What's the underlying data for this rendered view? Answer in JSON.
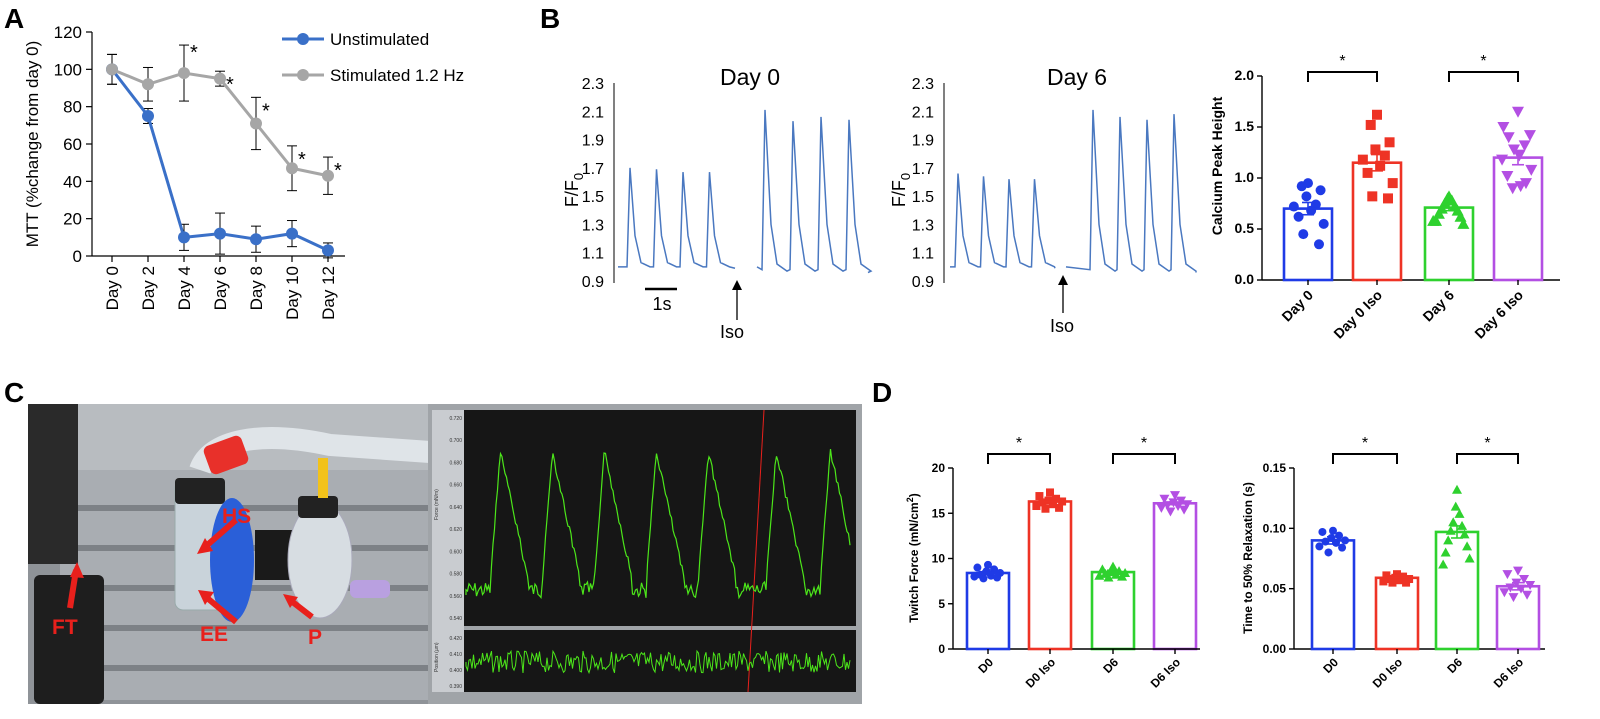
{
  "panels": {
    "a": "A",
    "b": "B",
    "c": "C",
    "d": "D"
  },
  "colors": {
    "blue": "#3A70C8",
    "gray": "#A6A6A6",
    "trace": "#4A78C0",
    "p_blue": "#1F3BE6",
    "p_red": "#EE3325",
    "p_green": "#2ED12E",
    "p_purple": "#B34FE3",
    "photo_green": "#4CE61A",
    "label_red": "#E8201C"
  },
  "chart_data": [
    {
      "id": "A",
      "type": "line",
      "xlabel": "",
      "ylabel": "MTT (%change from day 0)",
      "categories": [
        "Day 0",
        "Day 2",
        "Day 4",
        "Day 6",
        "Day 8",
        "Day 10",
        "Day 12"
      ],
      "ylim": [
        0,
        120
      ],
      "yticks": [
        "0",
        "20",
        "40",
        "60",
        "80",
        "100",
        "120"
      ],
      "series": [
        {
          "name": "Unstimulated",
          "values": [
            100,
            75,
            10,
            12,
            9,
            12,
            3
          ],
          "err": [
            8,
            4,
            7,
            11,
            7,
            7,
            4
          ],
          "sig": []
        },
        {
          "name": "Stimulated 1.2 Hz",
          "values": [
            100,
            92,
            98,
            95,
            71,
            47,
            43
          ],
          "err": [
            8,
            9,
            15,
            4,
            14,
            12,
            10
          ],
          "sig": [
            2,
            3,
            4,
            5,
            6
          ]
        }
      ],
      "sig_label": "*"
    },
    {
      "id": "B-traces",
      "type": "line",
      "ylabel_main": "F/F",
      "ylabel_sub": "0",
      "ylim": [
        0.9,
        2.3
      ],
      "yticks": [
        "0.9",
        "1.1",
        "1.3",
        "1.5",
        "1.7",
        "1.9",
        "2.1",
        "2.3"
      ],
      "traces": [
        {
          "title": "Day 0",
          "pre_peaks": [
            1.7,
            1.69,
            1.67,
            1.67
          ],
          "post_peaks": [
            2.11,
            2.03,
            2.06,
            2.04
          ]
        },
        {
          "title": "Day 6",
          "pre_peaks": [
            1.66,
            1.64,
            1.62,
            1.62
          ],
          "post_peaks": [
            2.11,
            2.06,
            2.04,
            2.08
          ]
        }
      ],
      "iso_label": "Iso",
      "scalebar": "1s"
    },
    {
      "id": "B-bar",
      "type": "bar",
      "ylabel": "Calcium Peak Height",
      "categories": [
        "Day 0",
        "Day 0 Iso",
        "Day 6",
        "Day 6 Iso"
      ],
      "values": [
        0.7,
        1.15,
        0.71,
        1.2
      ],
      "sem": [
        0.06,
        0.08,
        0.03,
        0.07
      ],
      "ylim": [
        0,
        2.0
      ],
      "yticks": [
        "0.0",
        "0.5",
        "1.0",
        "1.5",
        "2.0"
      ],
      "points": [
        [
          0.95,
          0.92,
          0.88,
          0.82,
          0.74,
          0.72,
          0.68,
          0.62,
          0.55,
          0.45,
          0.35
        ],
        [
          1.62,
          1.52,
          1.35,
          1.28,
          1.22,
          1.18,
          1.12,
          1.05,
          0.95,
          0.82,
          0.8
        ],
        [
          0.82,
          0.8,
          0.78,
          0.75,
          0.72,
          0.7,
          0.68,
          0.65,
          0.62,
          0.58,
          0.55,
          0.58
        ],
        [
          1.65,
          1.5,
          1.42,
          1.4,
          1.32,
          1.28,
          1.22,
          1.18,
          1.08,
          1.02,
          0.95,
          0.9,
          0.92
        ]
      ],
      "markers": [
        "circle",
        "square",
        "triangle-up",
        "triangle-down"
      ],
      "sig_label": "*"
    },
    {
      "id": "D-force",
      "type": "bar",
      "ylabel": "Twitch Force (mN/cm",
      "ylabel_sup": "2",
      "ylabel_end": ")",
      "categories": [
        "D0",
        "D0 Iso",
        "D6",
        "D6 Iso"
      ],
      "values": [
        8.4,
        16.3,
        8.5,
        16.1
      ],
      "sem": [
        0.2,
        0.15,
        0.2,
        0.15
      ],
      "ylim": [
        0,
        20
      ],
      "yticks": [
        "0",
        "5",
        "10",
        "15",
        "20"
      ],
      "points": [
        [
          9.3,
          9.0,
          8.8,
          8.6,
          8.4,
          8.2,
          8.1,
          8.0,
          7.9,
          7.8
        ],
        [
          17.3,
          16.9,
          16.6,
          16.4,
          16.3,
          16.2,
          16.0,
          15.8,
          15.6,
          15.5
        ],
        [
          9.1,
          8.8,
          8.6,
          8.5,
          8.4,
          8.3,
          8.2,
          8.1,
          8.0,
          7.9
        ],
        [
          17.0,
          16.6,
          16.4,
          16.2,
          16.0,
          15.9,
          15.8,
          15.6,
          15.4,
          15.2
        ]
      ],
      "markers": [
        "circle",
        "square",
        "triangle-up",
        "triangle-down"
      ],
      "sig_label": "*"
    },
    {
      "id": "D-relax",
      "type": "bar",
      "ylabel": "Time to 50% Relaxation (s)",
      "categories": [
        "D0",
        "D0 Iso",
        "D6",
        "D6 Iso"
      ],
      "values": [
        0.09,
        0.059,
        0.097,
        0.052
      ],
      "sem": [
        0.003,
        0.002,
        0.005,
        0.003
      ],
      "ylim": [
        0,
        0.15
      ],
      "yticks": [
        "0.00",
        "0.05",
        "0.10",
        "0.15"
      ],
      "points": [
        [
          0.098,
          0.097,
          0.094,
          0.092,
          0.09,
          0.089,
          0.088,
          0.085,
          0.084,
          0.08
        ],
        [
          0.062,
          0.061,
          0.06,
          0.059,
          0.058,
          0.058,
          0.057,
          0.056,
          0.055,
          0.055
        ],
        [
          0.132,
          0.118,
          0.112,
          0.105,
          0.102,
          0.098,
          0.095,
          0.09,
          0.085,
          0.08,
          0.075,
          0.07
        ],
        [
          0.065,
          0.062,
          0.058,
          0.055,
          0.053,
          0.051,
          0.05,
          0.047,
          0.045,
          0.043
        ]
      ],
      "markers": [
        "circle",
        "square",
        "triangle-up",
        "triangle-down"
      ],
      "sig_label": "*"
    }
  ],
  "photo": {
    "labels": [
      "HS",
      "EE",
      "P",
      "FT"
    ],
    "screen_axis_top": [
      "0.720",
      "0.700",
      "0.680",
      "0.660",
      "0.640",
      "0.620",
      "0.600",
      "0.580",
      "0.560",
      "0.540"
    ],
    "screen_ylabel_top": "Force (mN/m)",
    "screen_axis_bottom": [
      "0.420",
      "0.410",
      "0.400",
      "0.390"
    ],
    "screen_ylabel_bottom": "Position (µm)"
  }
}
